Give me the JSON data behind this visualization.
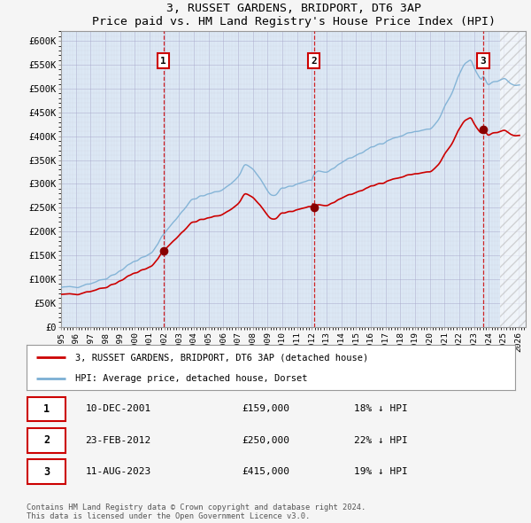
{
  "title": "3, RUSSET GARDENS, BRIDPORT, DT6 3AP",
  "subtitle": "Price paid vs. HM Land Registry's House Price Index (HPI)",
  "ylim": [
    0,
    620000
  ],
  "yticks": [
    0,
    50000,
    100000,
    150000,
    200000,
    250000,
    300000,
    350000,
    400000,
    450000,
    500000,
    550000,
    600000
  ],
  "ytick_labels": [
    "£0",
    "£50K",
    "£100K",
    "£150K",
    "£200K",
    "£250K",
    "£300K",
    "£350K",
    "£400K",
    "£450K",
    "£500K",
    "£550K",
    "£600K"
  ],
  "xlim_start": 1995.0,
  "xlim_end": 2026.5,
  "xtick_years": [
    1995,
    1996,
    1997,
    1998,
    1999,
    2000,
    2001,
    2002,
    2003,
    2004,
    2005,
    2006,
    2007,
    2008,
    2009,
    2010,
    2011,
    2012,
    2013,
    2014,
    2015,
    2016,
    2017,
    2018,
    2019,
    2020,
    2021,
    2022,
    2023,
    2024,
    2025,
    2026
  ],
  "sale_dates": [
    2001.94,
    2012.14,
    2023.61
  ],
  "sale_prices": [
    159000,
    250000,
    415000
  ],
  "sale_labels": [
    "1",
    "2",
    "3"
  ],
  "legend_red": "3, RUSSET GARDENS, BRIDPORT, DT6 3AP (detached house)",
  "legend_blue": "HPI: Average price, detached house, Dorset",
  "table_rows": [
    [
      "1",
      "10-DEC-2001",
      "£159,000",
      "18% ↓ HPI"
    ],
    [
      "2",
      "23-FEB-2012",
      "£250,000",
      "22% ↓ HPI"
    ],
    [
      "3",
      "11-AUG-2023",
      "£415,000",
      "19% ↓ HPI"
    ]
  ],
  "footnote": "Contains HM Land Registry data © Crown copyright and database right 2024.\nThis data is licensed under the Open Government Licence v3.0.",
  "red_color": "#cc0000",
  "blue_color": "#7bafd4",
  "shade_color": "#dce8f5",
  "hatch_color": "#cccccc",
  "hpi_index_base_date": 2001.94,
  "hpi_base_value": 159000,
  "sale1_date": 2001.94,
  "sale1_price": 159000,
  "sale2_date": 2012.14,
  "sale2_price": 250000,
  "sale3_date": 2023.61,
  "sale3_price": 415000
}
